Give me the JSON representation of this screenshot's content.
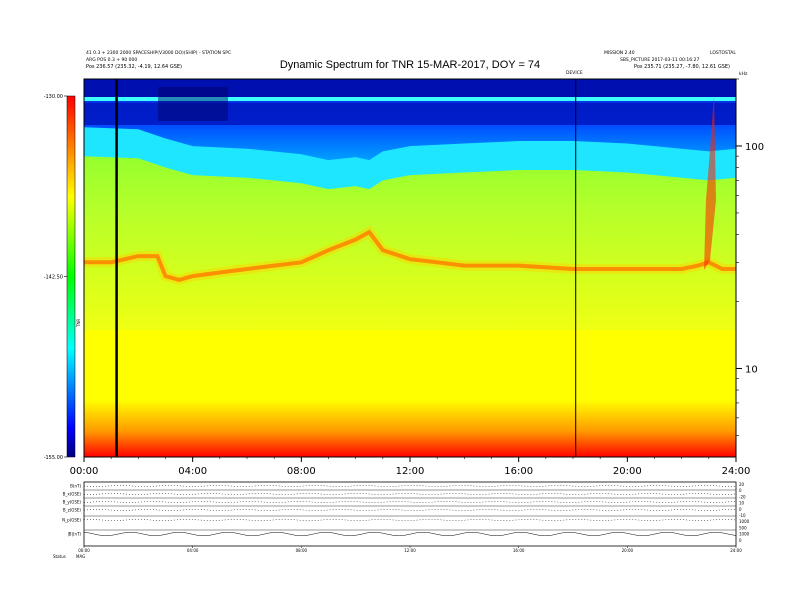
{
  "chart_data": {
    "type": "heatmap",
    "title": "Dynamic Spectrum for TNR 15-MAR-2017, DOY = 74",
    "header_left": [
      "41 0.3 + 2300 2000 SPACESHIP(V3000 DO)(SHIP) - STATION SPC",
      "ARG POS 0.3 + 90 000",
      "Pos    236.57 (235.32, -4.19, 12.64 GSE)"
    ],
    "header_right": [
      "MISSION 2.40",
      "SBS_PICTURE 2017-03-11 00:16:27",
      "Pos    235.71 (235.27, -7.80, 12.61 GSE)"
    ],
    "top_right_labels": [
      "LOSTOSTAL",
      "kHz"
    ],
    "event_label": "DEVICE",
    "x_axis": {
      "ticks": [
        "00:00",
        "04:00",
        "08:00",
        "12:00",
        "16:00",
        "20:00",
        "24:00"
      ],
      "range_hours": [
        0,
        24
      ]
    },
    "y_axis": {
      "scale": "log",
      "unit": "kHz",
      "range": [
        4,
        200
      ],
      "ticks": [
        "100",
        "10"
      ]
    },
    "colorbar": {
      "ticks": [
        "-130.00",
        "-142.50",
        "-155.00"
      ],
      "range": [
        -155,
        -130
      ],
      "label": "TNR",
      "colors": [
        "#000080",
        "#0000ff",
        "#00ffff",
        "#00ff00",
        "#ffff00",
        "#ff0000"
      ]
    },
    "vertical_markers_hours": [
      1.2,
      18.1
    ],
    "features": {
      "plasma_line_khz": {
        "hours": [
          0,
          1,
          2,
          2.7,
          3.0,
          3.5,
          4,
          5,
          6,
          7,
          8,
          9,
          10,
          10.5,
          11,
          12,
          13,
          14,
          16,
          18,
          20,
          22,
          22.6,
          23,
          23.5,
          24
        ],
        "values": [
          30,
          30,
          32,
          32,
          26,
          25,
          26,
          27,
          28,
          29,
          30,
          34,
          38,
          41,
          34,
          31,
          30,
          29,
          29,
          28,
          28,
          28,
          29,
          30,
          28,
          28
        ]
      },
      "blue_boundary_khz": {
        "hours": [
          0,
          2,
          3,
          4,
          6,
          8,
          9,
          10,
          10.5,
          11,
          12,
          14,
          16,
          18,
          20,
          22,
          23,
          24
        ],
        "values": [
          90,
          88,
          80,
          74,
          72,
          68,
          64,
          66,
          64,
          70,
          74,
          76,
          78,
          78,
          76,
          72,
          70,
          72
        ]
      }
    },
    "lower_panels": {
      "rows": [
        "B(nT)",
        "B_x(GSE)",
        "B_y(GSE)",
        "B_z(GSE)",
        "N_p(GSE)",
        "|B|(nT)"
      ],
      "right_scale": [
        "20",
        "0",
        "-20",
        "10",
        "0",
        "-10",
        "1000",
        "500",
        "1000",
        "0"
      ],
      "time_ticks": [
        "00:00",
        "04:00",
        "08:00",
        "12:00",
        "16:00",
        "20:00",
        "24:00"
      ],
      "footer": [
        "Status",
        "MAG"
      ]
    }
  }
}
